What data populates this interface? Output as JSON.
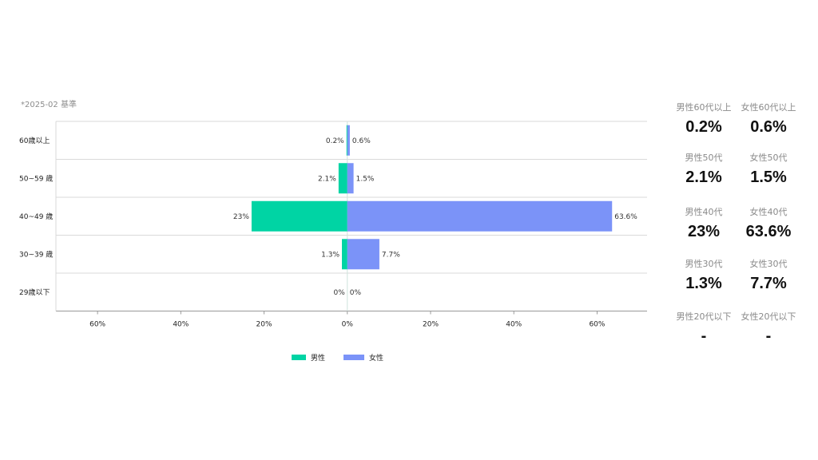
{
  "note": "*2025-02 基準",
  "chart_data": {
    "type": "bar",
    "orientation": "horizontal-diverging",
    "categories": [
      "60歳以上",
      "50~59 歳",
      "40~49 歳",
      "30~39 歳",
      "29歳以下"
    ],
    "series": [
      {
        "name": "男性",
        "color": "#00d4a4",
        "values": [
          0.2,
          2.1,
          23,
          1.3,
          0
        ],
        "labels": [
          "0.2%",
          "2.1%",
          "23%",
          "1.3%",
          "0%"
        ]
      },
      {
        "name": "女性",
        "color": "#7b93f8",
        "values": [
          0.6,
          1.5,
          63.6,
          7.7,
          0
        ],
        "labels": [
          "0.6%",
          "1.5%",
          "63.6%",
          "7.7%",
          "0%"
        ]
      }
    ],
    "x_ticks": [
      "60%",
      "40%",
      "20%",
      "0%",
      "20%",
      "40%",
      "60%"
    ],
    "x_tick_values": [
      -60,
      -40,
      -20,
      0,
      20,
      40,
      60
    ],
    "xlim": [
      -70,
      72
    ],
    "unit": "%",
    "legend_position": "bottom"
  },
  "stats": [
    {
      "label": "男性60代以上",
      "value": "0.2%"
    },
    {
      "label": "女性60代以上",
      "value": "0.6%"
    },
    {
      "label": "男性50代",
      "value": "2.1%"
    },
    {
      "label": "女性50代",
      "value": "1.5%"
    },
    {
      "label": "男性40代",
      "value": "23%"
    },
    {
      "label": "女性40代",
      "value": "63.6%"
    },
    {
      "label": "男性30代",
      "value": "1.3%"
    },
    {
      "label": "女性30代",
      "value": "7.7%"
    },
    {
      "label": "男性20代以下",
      "value": "-"
    },
    {
      "label": "女性20代以下",
      "value": "-"
    }
  ]
}
